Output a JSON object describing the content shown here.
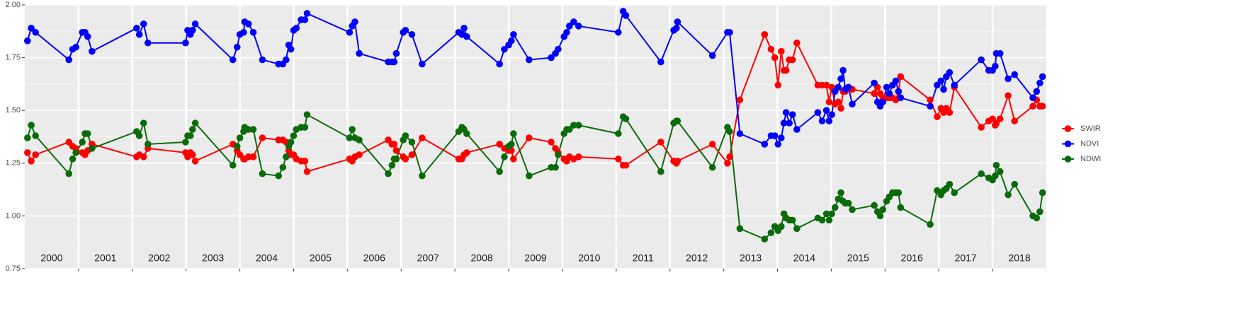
{
  "chart_data": {
    "type": "line",
    "x": [
      2000.05,
      2000.12,
      2000.2,
      2000.82,
      2000.89,
      2000.95,
      2001.07,
      2001.12,
      2001.17,
      2001.25,
      2002.08,
      2002.13,
      2002.21,
      2002.29,
      2002.99,
      2003.03,
      2003.08,
      2003.12,
      2003.17,
      2003.87,
      2003.95,
      2004.0,
      2004.07,
      2004.09,
      2004.16,
      2004.25,
      2004.42,
      2004.72,
      2004.8,
      2004.86,
      2004.91,
      2004.95,
      2005.0,
      2005.05,
      2005.14,
      2005.21,
      2005.25,
      2006.04,
      2006.09,
      2006.14,
      2006.22,
      2006.76,
      2006.83,
      2006.87,
      2006.91,
      2007.04,
      2007.08,
      2007.2,
      2007.39,
      2008.07,
      2008.13,
      2008.17,
      2008.22,
      2008.83,
      2008.92,
      2009.0,
      2009.05,
      2009.09,
      2009.38,
      2009.79,
      2009.87,
      2009.92,
      2010.03,
      2010.08,
      2010.13,
      2010.21,
      2010.3,
      2011.04,
      2011.13,
      2011.18,
      2011.83,
      2012.07,
      2012.12,
      2012.14,
      2012.79,
      2013.07,
      2013.11,
      2013.3,
      2013.76,
      2013.88,
      2013.95,
      2014.01,
      2014.07,
      2014.12,
      2014.16,
      2014.22,
      2014.28,
      2014.36,
      2014.75,
      2014.83,
      2014.91,
      2014.96,
      2015.01,
      2015.07,
      2015.13,
      2015.18,
      2015.22,
      2015.26,
      2015.32,
      2015.39,
      2015.8,
      2015.86,
      2015.91,
      2015.96,
      2016.03,
      2016.08,
      2016.14,
      2016.2,
      2016.25,
      2016.29,
      2016.84,
      2016.97,
      2017.04,
      2017.09,
      2017.14,
      2017.2,
      2017.29,
      2017.79,
      2017.93,
      2018.0,
      2018.05,
      2018.07,
      2018.14,
      2018.29,
      2018.41,
      2018.75,
      2018.82,
      2018.88,
      2018.93
    ],
    "series": [
      {
        "name": "SWIR",
        "color": "#ff0000",
        "values": [
          1.3,
          1.26,
          1.29,
          1.35,
          1.33,
          1.32,
          1.3,
          1.29,
          1.31,
          1.34,
          1.28,
          1.29,
          1.28,
          1.32,
          1.3,
          1.28,
          1.3,
          1.29,
          1.26,
          1.34,
          1.31,
          1.29,
          1.27,
          1.27,
          1.28,
          1.28,
          1.37,
          1.36,
          1.36,
          1.35,
          1.31,
          1.29,
          1.29,
          1.27,
          1.26,
          1.26,
          1.21,
          1.27,
          1.26,
          1.28,
          1.29,
          1.36,
          1.34,
          1.34,
          1.31,
          1.28,
          1.27,
          1.29,
          1.37,
          1.27,
          1.27,
          1.29,
          1.3,
          1.34,
          1.32,
          1.31,
          1.31,
          1.27,
          1.37,
          1.35,
          1.32,
          1.3,
          1.27,
          1.26,
          1.28,
          1.27,
          1.28,
          1.27,
          1.24,
          1.24,
          1.35,
          1.26,
          1.25,
          1.26,
          1.34,
          1.25,
          1.28,
          1.55,
          1.86,
          1.79,
          1.75,
          1.62,
          1.78,
          1.69,
          1.69,
          1.74,
          1.74,
          1.82,
          1.62,
          1.62,
          1.62,
          1.54,
          1.61,
          1.53,
          1.54,
          1.51,
          1.59,
          1.59,
          1.61,
          1.6,
          1.58,
          1.61,
          1.58,
          1.56,
          1.56,
          1.56,
          1.56,
          1.55,
          1.59,
          1.66,
          1.55,
          1.47,
          1.51,
          1.49,
          1.51,
          1.49,
          1.61,
          1.42,
          1.45,
          1.46,
          1.43,
          1.44,
          1.46,
          1.57,
          1.45,
          1.52,
          1.55,
          1.52,
          1.52
        ]
      },
      {
        "name": "NDVI",
        "color": "#0000ff",
        "values": [
          1.83,
          1.89,
          1.87,
          1.74,
          1.79,
          1.8,
          1.87,
          1.87,
          1.85,
          1.78,
          1.89,
          1.86,
          1.91,
          1.82,
          1.82,
          1.88,
          1.86,
          1.88,
          1.91,
          1.74,
          1.8,
          1.86,
          1.87,
          1.92,
          1.91,
          1.87,
          1.74,
          1.72,
          1.72,
          1.74,
          1.81,
          1.79,
          1.88,
          1.89,
          1.93,
          1.93,
          1.96,
          1.87,
          1.9,
          1.92,
          1.77,
          1.73,
          1.73,
          1.73,
          1.77,
          1.87,
          1.88,
          1.86,
          1.72,
          1.87,
          1.86,
          1.89,
          1.85,
          1.72,
          1.79,
          1.81,
          1.83,
          1.86,
          1.74,
          1.75,
          1.77,
          1.79,
          1.85,
          1.87,
          1.9,
          1.92,
          1.9,
          1.87,
          1.97,
          1.95,
          1.73,
          1.88,
          1.89,
          1.92,
          1.76,
          1.87,
          1.87,
          1.39,
          1.34,
          1.38,
          1.38,
          1.34,
          1.37,
          1.44,
          1.49,
          1.44,
          1.48,
          1.41,
          1.49,
          1.45,
          1.5,
          1.45,
          1.48,
          1.59,
          1.61,
          1.65,
          1.69,
          1.6,
          1.61,
          1.53,
          1.63,
          1.54,
          1.52,
          1.54,
          1.61,
          1.58,
          1.62,
          1.64,
          1.59,
          1.56,
          1.52,
          1.62,
          1.64,
          1.6,
          1.66,
          1.68,
          1.62,
          1.74,
          1.69,
          1.69,
          1.71,
          1.77,
          1.77,
          1.65,
          1.67,
          1.56,
          1.59,
          1.63,
          1.66
        ]
      },
      {
        "name": "NDWI",
        "color": "#0b6b0b",
        "values": [
          1.37,
          1.43,
          1.38,
          1.2,
          1.27,
          1.3,
          1.35,
          1.39,
          1.39,
          1.32,
          1.4,
          1.38,
          1.44,
          1.34,
          1.35,
          1.38,
          1.38,
          1.41,
          1.44,
          1.24,
          1.33,
          1.37,
          1.4,
          1.42,
          1.41,
          1.41,
          1.2,
          1.19,
          1.23,
          1.28,
          1.33,
          1.35,
          1.38,
          1.41,
          1.42,
          1.42,
          1.48,
          1.37,
          1.41,
          1.37,
          1.36,
          1.2,
          1.24,
          1.27,
          1.27,
          1.36,
          1.38,
          1.35,
          1.19,
          1.4,
          1.42,
          1.41,
          1.39,
          1.21,
          1.28,
          1.33,
          1.34,
          1.39,
          1.19,
          1.23,
          1.23,
          1.29,
          1.39,
          1.41,
          1.41,
          1.43,
          1.43,
          1.39,
          1.47,
          1.46,
          1.21,
          1.44,
          1.45,
          1.45,
          1.23,
          1.42,
          1.4,
          0.94,
          0.89,
          0.92,
          0.95,
          0.93,
          0.95,
          1.01,
          0.99,
          0.98,
          0.98,
          0.94,
          0.99,
          0.98,
          1.01,
          0.98,
          1.01,
          1.04,
          1.08,
          1.11,
          1.07,
          1.06,
          1.06,
          1.03,
          1.05,
          1.02,
          1.0,
          1.03,
          1.07,
          1.09,
          1.11,
          1.11,
          1.11,
          1.04,
          0.96,
          1.12,
          1.1,
          1.12,
          1.13,
          1.15,
          1.11,
          1.2,
          1.18,
          1.17,
          1.19,
          1.24,
          1.21,
          1.1,
          1.15,
          1.0,
          0.99,
          1.02,
          1.11
        ]
      }
    ],
    "xlim": [
      2000,
      2019
    ],
    "xticks": [
      {
        "value": 2000.5,
        "label": "2000"
      },
      {
        "value": 2001.5,
        "label": "2001"
      },
      {
        "value": 2002.5,
        "label": "2002"
      },
      {
        "value": 2003.5,
        "label": "2003"
      },
      {
        "value": 2004.5,
        "label": "2004"
      },
      {
        "value": 2005.5,
        "label": "2005"
      },
      {
        "value": 2006.5,
        "label": "2006"
      },
      {
        "value": 2007.5,
        "label": "2007"
      },
      {
        "value": 2008.5,
        "label": "2008"
      },
      {
        "value": 2009.5,
        "label": "2009"
      },
      {
        "value": 2010.5,
        "label": "2010"
      },
      {
        "value": 2011.5,
        "label": "2011"
      },
      {
        "value": 2012.5,
        "label": "2012"
      },
      {
        "value": 2013.5,
        "label": "2013"
      },
      {
        "value": 2014.5,
        "label": "2014"
      },
      {
        "value": 2015.5,
        "label": "2015"
      },
      {
        "value": 2016.5,
        "label": "2016"
      },
      {
        "value": 2017.5,
        "label": "2017"
      },
      {
        "value": 2018.5,
        "label": "2018"
      }
    ],
    "ylim": [
      0.75,
      2.0
    ],
    "yticks": [
      {
        "value": 0.75,
        "label": "0.75"
      },
      {
        "value": 1.0,
        "label": "1.00"
      },
      {
        "value": 1.25,
        "label": "1.25"
      },
      {
        "value": 1.5,
        "label": "1.50"
      },
      {
        "value": 1.75,
        "label": "1.75"
      },
      {
        "value": 2.0,
        "label": "2.00"
      }
    ],
    "grid": true,
    "legend": "right"
  }
}
